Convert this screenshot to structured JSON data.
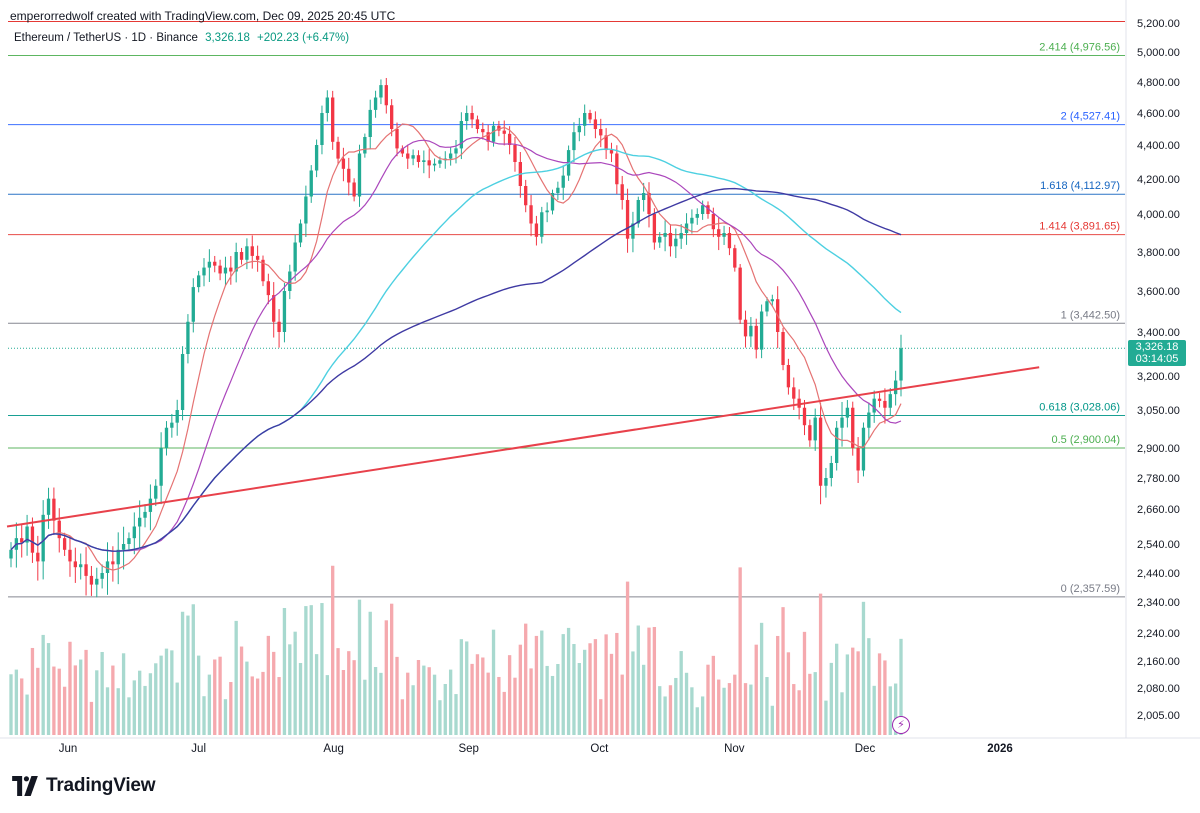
{
  "header": {
    "attribution": "emperorredwolf created with TradingView.com, Dec 09, 2025 20:45 UTC",
    "symbol": "Ethereum / TetherUS · 1D · Binance",
    "last_price": "3,326.18",
    "change": "+202.23 (+6.47%)"
  },
  "price_tag": {
    "price": "3,326.18",
    "countdown": "03:14:05"
  },
  "brand": {
    "name": "TradingView"
  },
  "colors": {
    "up": "#22ab94",
    "down": "#f23645",
    "trendline": "#e8414b",
    "ma_fast": "#e57373",
    "ma_mid": "#ab47bc",
    "ma_cyan": "#4dd0e1",
    "ma_slow": "#3f3aa3"
  },
  "chart_data": {
    "type": "candlestick",
    "title": "Ethereum / TetherUS · 1D · Binance",
    "y_ticks": [
      "5,200.00",
      "5,000.00",
      "4,800.00",
      "4,600.00",
      "4,400.00",
      "4,200.00",
      "4,000.00",
      "3,800.00",
      "3,600.00",
      "3,400.00",
      "3,200.00",
      "3,050.00",
      "2,900.00",
      "2,780.00",
      "2,660.00",
      "2,540.00",
      "2,440.00",
      "2,340.00",
      "2,240.00",
      "2,160.00",
      "2,080.00",
      "2,005.00"
    ],
    "y_tick_values": [
      5200,
      5000,
      4800,
      4600,
      4400,
      4200,
      4000,
      3800,
      3600,
      3400,
      3200,
      3050,
      2900,
      2780,
      2660,
      2540,
      2440,
      2340,
      2240,
      2160,
      2080,
      2005
    ],
    "x_labels": [
      "Jun",
      "Jul",
      "Aug",
      "Sep",
      "Oct",
      "Nov",
      "Dec",
      "2026"
    ],
    "x_label_dates": [
      "2025-06-01",
      "2025-07-01",
      "2025-08-01",
      "2025-09-01",
      "2025-10-01",
      "2025-11-01",
      "2025-12-01",
      "2026-01-01"
    ],
    "fib_levels": [
      {
        "label": "2.414 (4,976.56)",
        "value": 4976.56,
        "color": "#4caf50"
      },
      {
        "label": "2 (4,527.41)",
        "value": 4527.41,
        "color": "#2962ff"
      },
      {
        "label": "1.618 (4,112.97)",
        "value": 4112.97,
        "color": "#1565c0"
      },
      {
        "label": "1.414 (3,891.65)",
        "value": 3891.65,
        "color": "#e53935"
      },
      {
        "label": "1 (3,442.50)",
        "value": 3442.5,
        "color": "#787b86"
      },
      {
        "label": "0.618 (3,028.06)",
        "value": 3028.06,
        "color": "#009688"
      },
      {
        "label": "0.5 (2,900.04)",
        "value": 2900.04,
        "color": "#4caf50"
      },
      {
        "label": "0 (2,357.59)",
        "value": 2357.59,
        "color": "#787b86"
      }
    ],
    "top_red_line": 5210,
    "trendline": {
      "start": {
        "date": "2025-05-18",
        "price": 2600
      },
      "end": {
        "date": "2026-01-10",
        "price": 3240
      }
    },
    "close_series": [
      2520,
      2560,
      2545,
      2600,
      2510,
      2480,
      2640,
      2700,
      2620,
      2560,
      2520,
      2480,
      2460,
      2470,
      2430,
      2400,
      2420,
      2440,
      2480,
      2470,
      2520,
      2540,
      2560,
      2600,
      2630,
      2650,
      2700,
      2750,
      2900,
      2980,
      3000,
      3050,
      3300,
      3450,
      3620,
      3680,
      3720,
      3750,
      3730,
      3690,
      3720,
      3700,
      3800,
      3760,
      3830,
      3780,
      3760,
      3650,
      3580,
      3450,
      3400,
      3600,
      3700,
      3850,
      3950,
      4100,
      4250,
      4400,
      4600,
      4700,
      4420,
      4320,
      4260,
      4180,
      4100,
      4350,
      4450,
      4620,
      4700,
      4780,
      4650,
      4500,
      4380,
      4350,
      4320,
      4340,
      4300,
      4310,
      4280,
      4290,
      4310,
      4320,
      4350,
      4380,
      4550,
      4600,
      4560,
      4500,
      4480,
      4420,
      4520,
      4490,
      4470,
      4400,
      4300,
      4160,
      4050,
      3950,
      3880,
      4010,
      4020,
      4120,
      4150,
      4220,
      4370,
      4480,
      4520,
      4600,
      4560,
      4500,
      4460,
      4370,
      4350,
      4170,
      4080,
      3870,
      3950,
      4080,
      4120,
      4000,
      3850,
      3880,
      3900,
      3830,
      3870,
      3900,
      3950,
      3980,
      4000,
      4050,
      4000,
      3920,
      3880,
      3900,
      3820,
      3720,
      3460,
      3380,
      3430,
      3320,
      3500,
      3550,
      3560,
      3400,
      3250,
      3150,
      3100,
      3060,
      2990,
      2930,
      3020,
      2750,
      2780,
      2840,
      2980,
      3020,
      3060,
      2900,
      2810,
      2980,
      3040,
      3100,
      3090,
      3060,
      3120,
      3180,
      3326
    ],
    "volume_note": "volume histogram bars in green/red beneath candles"
  }
}
